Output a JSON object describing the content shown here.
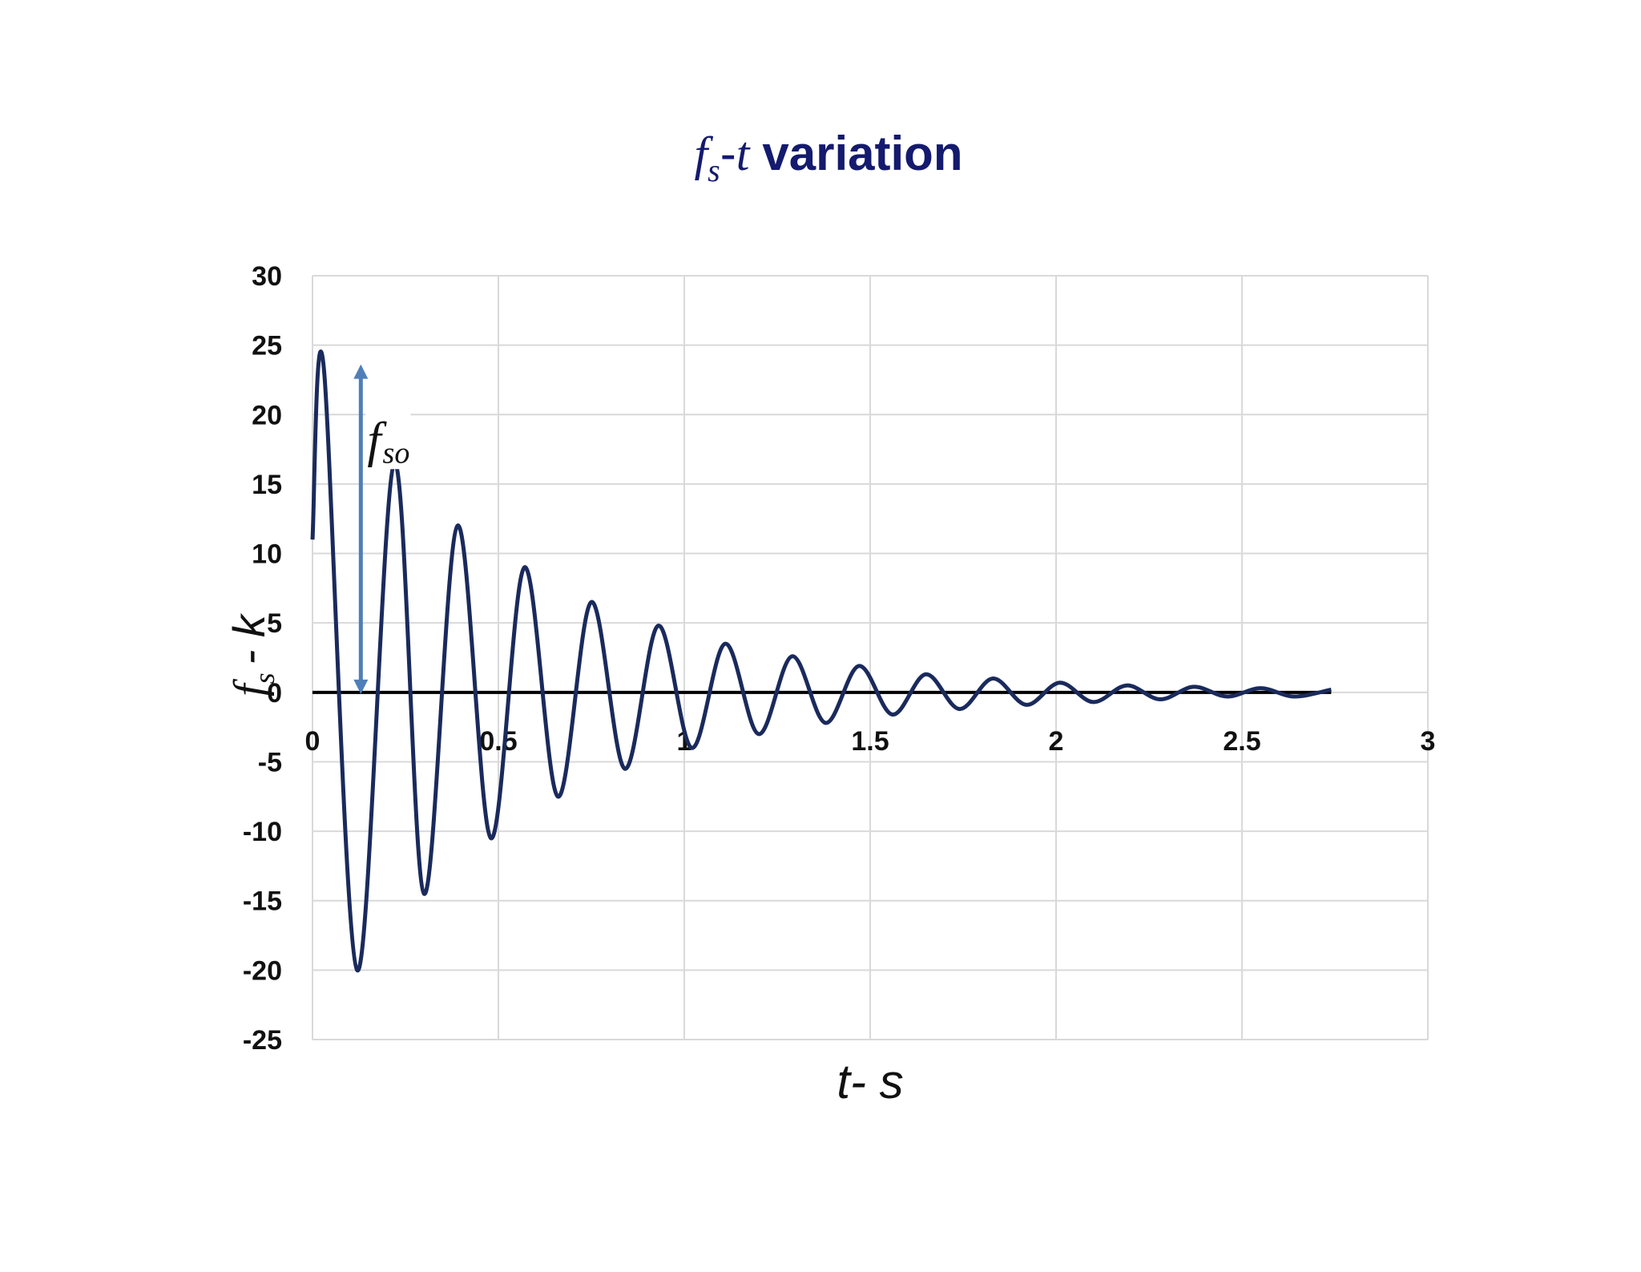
{
  "chart_data": {
    "type": "line",
    "title": {
      "symbol": "f",
      "subscript": "s",
      "dash": "-",
      "t": "t",
      "rest": "variation",
      "color": "#141a6e"
    },
    "xlabel": {
      "text": "t- s"
    },
    "ylabel": {
      "symbol": "f",
      "subscript": "s",
      "rest": "- k"
    },
    "xlim": [
      0,
      3
    ],
    "ylim": [
      -25,
      30
    ],
    "xticks": [
      "0",
      "0.5",
      "1",
      "1.5",
      "2",
      "2.5",
      "3"
    ],
    "yticks": [
      "30",
      "25",
      "20",
      "15",
      "10",
      "5",
      "0",
      "-5",
      "-10",
      "-15",
      "-20",
      "-25"
    ],
    "grid": true,
    "series": [
      {
        "color": "#1a2a5c",
        "x": [
          0,
          0.03,
          0.12,
          0.22,
          0.3,
          0.39,
          0.48,
          0.57,
          0.66,
          0.75,
          0.84,
          0.93,
          1.02,
          1.11,
          1.2,
          1.29,
          1.38,
          1.47,
          1.56,
          1.65,
          1.74,
          1.83,
          1.92,
          2.01,
          2.1,
          2.19,
          2.28,
          2.37,
          2.46,
          2.55,
          2.64,
          2.74
        ],
        "y": [
          11,
          23.5,
          -20,
          16.5,
          -14.5,
          12,
          -10.5,
          9,
          -7.5,
          6.5,
          -5.5,
          4.8,
          -4,
          3.5,
          -3,
          2.6,
          -2.2,
          1.9,
          -1.6,
          1.3,
          -1.2,
          1.0,
          -0.9,
          0.7,
          -0.7,
          0.5,
          -0.5,
          0.4,
          -0.3,
          0.3,
          -0.3,
          0.2
        ]
      }
    ],
    "annotation": {
      "symbol": "f",
      "subscript": "so",
      "x": 0.13,
      "y_from": 0,
      "y_to": 23.5,
      "color": "#4f7fb8"
    },
    "zero_line_color": "#000000",
    "grid_color": "#d9d9d9"
  }
}
